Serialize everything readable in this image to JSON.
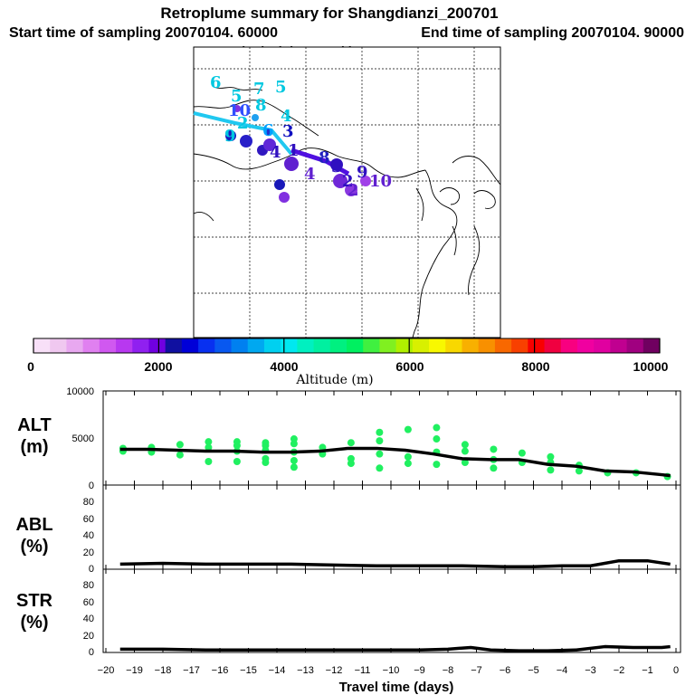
{
  "chart_data": [
    {
      "type": "map",
      "title": "Retroplume summary for Shangdianzi_200701",
      "subtitle_start": "Start time of sampling 20070104. 60000",
      "subtitle_end": "End time of sampling 20070104. 90000",
      "subtitle_met": "Meteorological data used is ECMWF",
      "labels": [
        {
          "text": "6",
          "color": "#00c8e0"
        },
        {
          "text": "5",
          "color": "#00c8e0"
        },
        {
          "text": "7",
          "color": "#00c8e0"
        },
        {
          "text": "5",
          "color": "#00c8e0"
        },
        {
          "text": "10",
          "color": "#3050ff"
        },
        {
          "text": "8",
          "color": "#00c8e0"
        },
        {
          "text": "4",
          "color": "#00c8e0"
        },
        {
          "text": "2",
          "color": "#00c8e0"
        },
        {
          "text": "6",
          "color": "#00a0ff"
        },
        {
          "text": "3",
          "color": "#1010c0"
        },
        {
          "text": "9",
          "color": "#00c8e0"
        },
        {
          "text": "1",
          "color": "#3010c0"
        },
        {
          "text": "4",
          "color": "#3010c0"
        },
        {
          "text": "4",
          "color": "#6020d0"
        },
        {
          "text": "8",
          "color": "#2020c0"
        },
        {
          "text": "3",
          "color": "#3010c0"
        },
        {
          "text": "2",
          "color": "#3010c0"
        },
        {
          "text": "10",
          "color": "#6020d0"
        },
        {
          "text": "9",
          "color": "#3010c0"
        },
        {
          "text": "2",
          "color": "#6020d0"
        }
      ]
    },
    {
      "type": "colorbar",
      "xlabel": "Altitude (m)",
      "ticks": [
        "0",
        "2000",
        "4000",
        "6000",
        "8000",
        "10000"
      ],
      "range": [
        0,
        10000
      ],
      "colors": [
        "#f8e0f8",
        "#f0c8f0",
        "#e8a8f0",
        "#e080f0",
        "#d058f0",
        "#b838f0",
        "#9020f0",
        "#7000e0",
        "#1010a0",
        "#0000d8",
        "#0830f0",
        "#0858f0",
        "#0080f0",
        "#00a8f0",
        "#00d0f0",
        "#00e8f0",
        "#00f0c0",
        "#00f0a0",
        "#00f080",
        "#00f060",
        "#40f040",
        "#80f020",
        "#b0f000",
        "#d8f000",
        "#f8f800",
        "#f8d800",
        "#f8b000",
        "#f89000",
        "#f86800",
        "#f84000",
        "#f80000",
        "#f00040",
        "#f80080",
        "#f000a0",
        "#e000a0",
        "#c00090",
        "#a00080",
        "#700060"
      ]
    },
    {
      "type": "line",
      "name": "ALT",
      "ylabel": "ALT\n(m)",
      "ylabel_line1": "ALT",
      "ylabel_line2": "(m)",
      "xlim": [
        -20,
        0
      ],
      "ylim": [
        0,
        10000
      ],
      "yticks": [
        "0",
        "5000",
        "10000"
      ],
      "x": [
        -19.5,
        -18.5,
        -17.5,
        -16.5,
        -15.5,
        -14.5,
        -13.5,
        -12.5,
        -11.5,
        -10.5,
        -9.5,
        -8.5,
        -7.5,
        -6.5,
        -5.5,
        -4.5,
        -3.5,
        -2.5,
        -1.5,
        -0.5,
        -0.2
      ],
      "values": [
        3800,
        3800,
        3700,
        3600,
        3600,
        3500,
        3500,
        3600,
        3900,
        3900,
        3700,
        3300,
        2800,
        2700,
        2700,
        2200,
        2000,
        1500,
        1400,
        1100,
        1000
      ],
      "scatter": [
        {
          "x": -19.4,
          "y": 3600
        },
        {
          "x": -19.4,
          "y": 3900
        },
        {
          "x": -18.4,
          "y": 3500
        },
        {
          "x": -18.4,
          "y": 4000
        },
        {
          "x": -17.4,
          "y": 3200
        },
        {
          "x": -17.4,
          "y": 4300
        },
        {
          "x": -16.4,
          "y": 2500
        },
        {
          "x": -16.4,
          "y": 4000
        },
        {
          "x": -16.4,
          "y": 4600
        },
        {
          "x": -15.4,
          "y": 2500
        },
        {
          "x": -15.4,
          "y": 3600
        },
        {
          "x": -15.4,
          "y": 4200
        },
        {
          "x": -15.4,
          "y": 4600
        },
        {
          "x": -14.4,
          "y": 2400
        },
        {
          "x": -14.4,
          "y": 2800
        },
        {
          "x": -14.4,
          "y": 3700
        },
        {
          "x": -14.4,
          "y": 4200
        },
        {
          "x": -14.4,
          "y": 4500
        },
        {
          "x": -13.4,
          "y": 1900
        },
        {
          "x": -13.4,
          "y": 2600
        },
        {
          "x": -13.4,
          "y": 3500
        },
        {
          "x": -13.4,
          "y": 4400
        },
        {
          "x": -13.4,
          "y": 4900
        },
        {
          "x": -12.4,
          "y": 3300
        },
        {
          "x": -12.4,
          "y": 4000
        },
        {
          "x": -11.4,
          "y": 2300
        },
        {
          "x": -11.4,
          "y": 2800
        },
        {
          "x": -11.4,
          "y": 4500
        },
        {
          "x": -10.4,
          "y": 1800
        },
        {
          "x": -10.4,
          "y": 3300
        },
        {
          "x": -10.4,
          "y": 4700
        },
        {
          "x": -10.4,
          "y": 5600
        },
        {
          "x": -9.4,
          "y": 2300
        },
        {
          "x": -9.4,
          "y": 3000
        },
        {
          "x": -9.4,
          "y": 5900
        },
        {
          "x": -8.4,
          "y": 2200
        },
        {
          "x": -8.4,
          "y": 3500
        },
        {
          "x": -8.4,
          "y": 4900
        },
        {
          "x": -8.4,
          "y": 6100
        },
        {
          "x": -7.4,
          "y": 2400
        },
        {
          "x": -7.4,
          "y": 3600
        },
        {
          "x": -7.4,
          "y": 4300
        },
        {
          "x": -6.4,
          "y": 1800
        },
        {
          "x": -6.4,
          "y": 2700
        },
        {
          "x": -6.4,
          "y": 3800
        },
        {
          "x": -5.4,
          "y": 2400
        },
        {
          "x": -5.4,
          "y": 3400
        },
        {
          "x": -4.4,
          "y": 1600
        },
        {
          "x": -4.4,
          "y": 2400
        },
        {
          "x": -4.4,
          "y": 3000
        },
        {
          "x": -3.4,
          "y": 1500
        },
        {
          "x": -3.4,
          "y": 2100
        },
        {
          "x": -2.4,
          "y": 1300
        },
        {
          "x": -1.4,
          "y": 1300
        },
        {
          "x": -0.3,
          "y": 900
        }
      ]
    },
    {
      "type": "line",
      "name": "ABL",
      "ylabel_line1": "ABL",
      "ylabel_line2": "(%)",
      "xlim": [
        -20,
        0
      ],
      "ylim": [
        0,
        100
      ],
      "yticks": [
        "0",
        "20",
        "40",
        "60",
        "80"
      ],
      "x": [
        -19.5,
        -18,
        -16.5,
        -15,
        -13.5,
        -12,
        -10.5,
        -9,
        -7.5,
        -6,
        -5,
        -4,
        -3,
        -2,
        -1,
        -0.2
      ],
      "values": [
        6,
        7,
        6,
        6,
        6,
        5,
        4,
        4,
        4,
        3,
        3,
        4,
        4,
        10,
        10,
        6
      ]
    },
    {
      "type": "line",
      "name": "STR",
      "ylabel_line1": "STR",
      "ylabel_line2": "(%)",
      "xlabel": "Travel time (days)",
      "xlim": [
        -20,
        0
      ],
      "ylim": [
        0,
        100
      ],
      "yticks": [
        "0",
        "20",
        "40",
        "60",
        "80"
      ],
      "xticks": [
        "−20",
        "−19",
        "−18",
        "−17",
        "−16",
        "−15",
        "−14",
        "−13",
        "−12",
        "−11",
        "−10",
        "−9",
        "−8",
        "−7",
        "−6",
        "−5",
        "−4",
        "−3",
        "−2",
        "−1",
        "0"
      ],
      "x": [
        -19.5,
        -18,
        -16.5,
        -15,
        -13.5,
        -12,
        -10.5,
        -9,
        -8,
        -7.2,
        -6.5,
        -5.5,
        -4.5,
        -3.5,
        -2.5,
        -1.5,
        -0.5,
        -0.2
      ],
      "values": [
        4,
        4,
        3,
        3,
        3,
        3,
        3,
        3,
        4,
        6,
        3,
        2,
        2,
        3,
        7,
        6,
        6,
        7
      ]
    }
  ]
}
